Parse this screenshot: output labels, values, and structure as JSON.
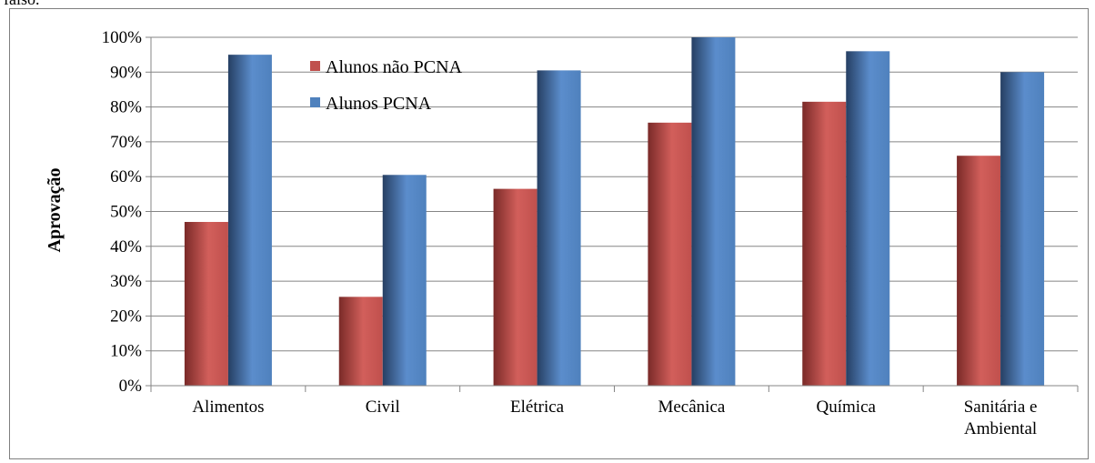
{
  "caption_fragment": "falso.",
  "chart_data": {
    "type": "bar",
    "categories": [
      "Alimentos",
      "Civil",
      "Elétrica",
      "Mecânica",
      "Química",
      "Sanitária e Ambiental"
    ],
    "category_lines": [
      [
        "Alimentos"
      ],
      [
        "Civil"
      ],
      [
        "Elétrica"
      ],
      [
        "Mecânica"
      ],
      [
        "Química"
      ],
      [
        "Sanitária e",
        "Ambiental"
      ]
    ],
    "series": [
      {
        "name": "Alunos não PCNA",
        "color": "#c0504d",
        "values": [
          47,
          25.5,
          56.5,
          75.5,
          81.5,
          66
        ]
      },
      {
        "name": "Alunos PCNA",
        "color": "#4f81bd",
        "values": [
          95,
          60.5,
          90.5,
          100,
          96,
          90
        ]
      }
    ],
    "ylabel": "Aprovação",
    "xlabel": "",
    "title": "",
    "ylim": [
      0,
      100
    ],
    "yticks": [
      0,
      10,
      20,
      30,
      40,
      50,
      60,
      70,
      80,
      90,
      100
    ],
    "ytick_suffix": "%",
    "grid": true,
    "legend_position": "top-left inside plot"
  }
}
